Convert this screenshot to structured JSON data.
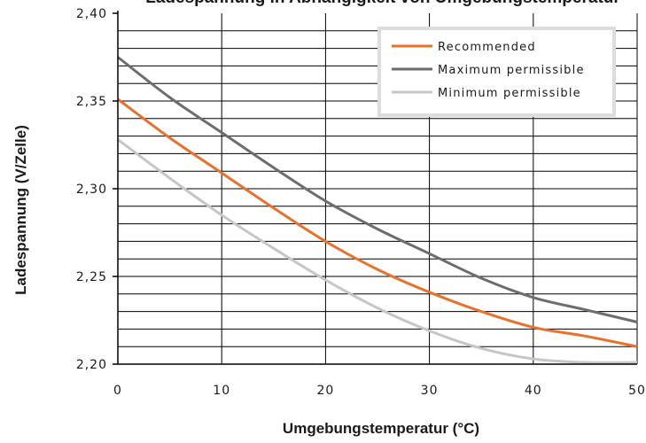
{
  "chart_data": {
    "type": "line",
    "title": "Ladespannung in Abhängigkeit von Umgebungstemperatur",
    "xlabel": "Umgebungstemperatur (°C)",
    "ylabel": "Ladespannung (V/Zelle)",
    "xlim": [
      0,
      50
    ],
    "ylim": [
      2.2,
      2.4
    ],
    "x_ticks": [
      0,
      10,
      20,
      30,
      40,
      50
    ],
    "x_tick_labels": [
      "0",
      "10",
      "20",
      "30",
      "40",
      "50"
    ],
    "y_ticks": [
      2.2,
      2.25,
      2.3,
      2.35,
      2.4
    ],
    "y_tick_labels": [
      "2,20",
      "2,25",
      "2,30",
      "2,35",
      "2,40"
    ],
    "grid": true,
    "legend_position": "top-right",
    "series": [
      {
        "name": "Recommended",
        "color": "#e8722c",
        "x": [
          0,
          5,
          10,
          15,
          20,
          25,
          30,
          35,
          40,
          45,
          50
        ],
        "y": [
          2.351,
          2.329,
          2.309,
          2.289,
          2.27,
          2.254,
          2.241,
          2.23,
          2.221,
          2.216,
          2.21
        ]
      },
      {
        "name": "Maximum permissible",
        "color": "#6d6d6d",
        "x": [
          0,
          5,
          10,
          15,
          20,
          25,
          30,
          35,
          40,
          45,
          50
        ],
        "y": [
          2.375,
          2.352,
          2.332,
          2.312,
          2.293,
          2.277,
          2.263,
          2.249,
          2.238,
          2.231,
          2.224
        ]
      },
      {
        "name": "Minimum permissible",
        "color": "#c6c6c6",
        "x": [
          0,
          5,
          10,
          15,
          20,
          25,
          30,
          35,
          40,
          45,
          50
        ],
        "y": [
          2.328,
          2.306,
          2.285,
          2.266,
          2.248,
          2.232,
          2.219,
          2.209,
          2.203,
          2.201,
          2.201
        ]
      }
    ]
  }
}
